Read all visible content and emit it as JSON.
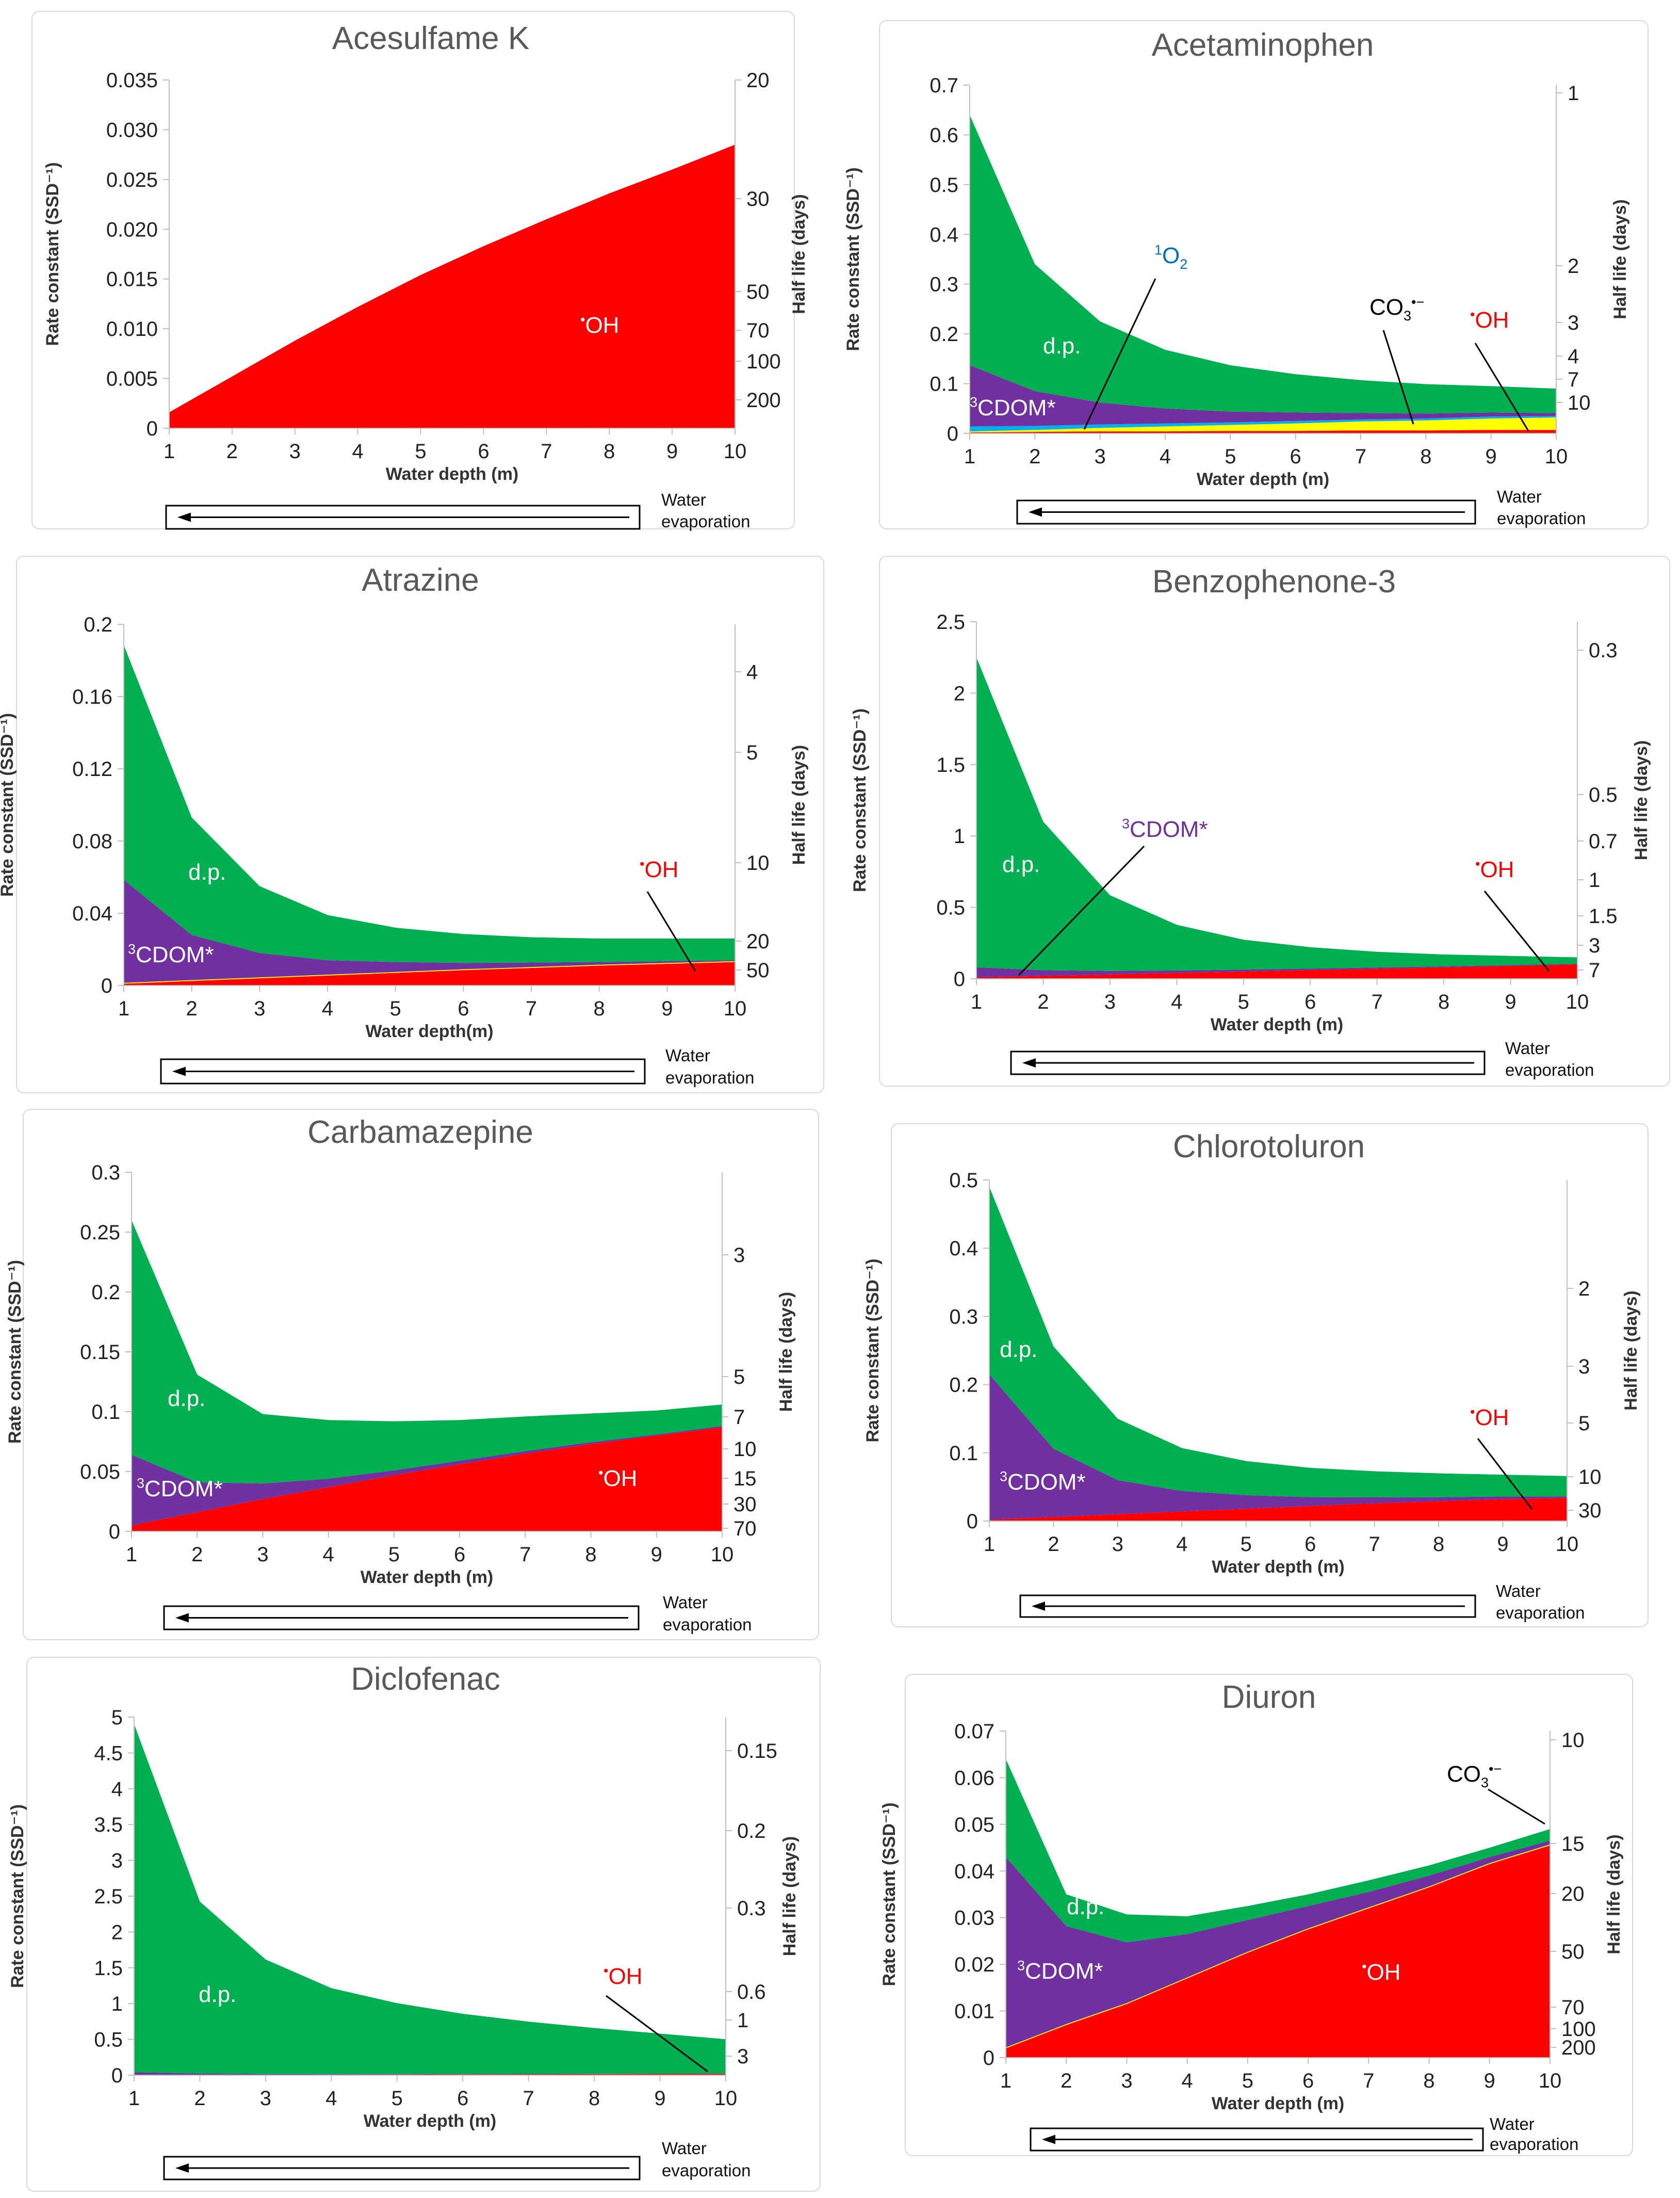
{
  "figure_title": "",
  "chart_data": [
    {
      "type": "area",
      "title": "Acesulfame K",
      "xlabel": "Water depth (m)",
      "ylabel": "Rate constant (SSD⁻¹)",
      "y2label": "Half life (days)",
      "x": [
        1,
        2,
        3,
        4,
        5,
        6,
        7,
        8,
        9,
        10
      ],
      "ylim": [
        0,
        0.035
      ],
      "yticks": [
        "0",
        "0.005",
        "0.010",
        "0.015",
        "0.020",
        "0.025",
        "0.030",
        "0.035"
      ],
      "half_life_ticks": [
        "20",
        "30",
        "50",
        "70",
        "100",
        "200"
      ],
      "series": [
        {
          "name": "•OH",
          "color": "#ff0000",
          "values": [
            0.0016,
            0.0052,
            0.0088,
            0.0122,
            0.0154,
            0.0183,
            0.021,
            0.0236,
            0.026,
            0.0285
          ]
        }
      ],
      "labels": [
        {
          "text": "•OH",
          "color": "#ffffff"
        }
      ],
      "evaporation_label": [
        "Water",
        "evaporation"
      ]
    },
    {
      "type": "area",
      "title": "Acetaminophen",
      "xlabel": "Water depth (m)",
      "ylabel": "Rate constant (SSD⁻¹)",
      "y2label": "Half life (days)",
      "x": [
        1,
        2,
        3,
        4,
        5,
        6,
        7,
        8,
        9,
        10
      ],
      "ylim": [
        0,
        0.7
      ],
      "yticks": [
        "0",
        "0.1",
        "0.2",
        "0.3",
        "0.4",
        "0.5",
        "0.6",
        "0.7"
      ],
      "half_life_ticks": [
        "1",
        "2",
        "3",
        "4",
        "7",
        "10"
      ],
      "series": [
        {
          "name": "•OH",
          "color": "#ff0000",
          "values": [
            0.002,
            0.003,
            0.004,
            0.004,
            0.005,
            0.005,
            0.006,
            0.006,
            0.007,
            0.007
          ]
        },
        {
          "name": "CO3•−",
          "color": "#ffff00",
          "values": [
            0.002,
            0.004,
            0.007,
            0.01,
            0.012,
            0.015,
            0.018,
            0.02,
            0.023,
            0.025
          ]
        },
        {
          "name": "1O2",
          "color": "#00b0f0",
          "values": [
            0.01,
            0.008,
            0.007,
            0.006,
            0.005,
            0.005,
            0.004,
            0.004,
            0.004,
            0.003
          ]
        },
        {
          "name": "3CDOM*",
          "color": "#7030a0",
          "values": [
            0.123,
            0.07,
            0.044,
            0.03,
            0.022,
            0.017,
            0.013,
            0.01,
            0.008,
            0.006
          ]
        },
        {
          "name": "d.p.",
          "color": "#00b050",
          "values": [
            0.503,
            0.255,
            0.163,
            0.118,
            0.093,
            0.077,
            0.066,
            0.059,
            0.053,
            0.049
          ]
        }
      ],
      "labels": [
        {
          "text": "d.p.",
          "color": "#ffffff"
        },
        {
          "text": "3CDOM*",
          "color": "#ffffff"
        },
        {
          "text": "1O2",
          "color": "#0070c0"
        },
        {
          "text": "CO3•−",
          "color": "#000000"
        },
        {
          "text": "•OH",
          "color": "#ff0000"
        }
      ],
      "evaporation_label": [
        "Water",
        "evaporation"
      ]
    },
    {
      "type": "area",
      "title": "Atrazine",
      "xlabel": "Water depth(m)",
      "ylabel": "Rate constant (SSD⁻¹)",
      "y2label": "Half life (days)",
      "x": [
        1,
        2,
        3,
        4,
        5,
        6,
        7,
        8,
        9,
        10
      ],
      "ylim": [
        0,
        0.2
      ],
      "yticks": [
        "0",
        "0.04",
        "0.08",
        "0.12",
        "0.16",
        "0.2"
      ],
      "half_life_ticks": [
        "4",
        "5",
        "10",
        "20",
        "50"
      ],
      "series": [
        {
          "name": "•OH",
          "color": "#ff0000",
          "values": [
            0.001,
            0.0025,
            0.004,
            0.0055,
            0.007,
            0.0085,
            0.0097,
            0.011,
            0.012,
            0.013
          ]
        },
        {
          "name": "CO3•−",
          "color": "#ffff00",
          "values": [
            0.0005,
            0.0005,
            0.0005,
            0.0005,
            0.0005,
            0.0005,
            0.0005,
            0.0005,
            0.0005,
            0.0005
          ]
        },
        {
          "name": "3CDOM*",
          "color": "#7030a0",
          "values": [
            0.057,
            0.025,
            0.0135,
            0.008,
            0.0055,
            0.0035,
            0.0025,
            0.0015,
            0.001,
            0.0005
          ]
        },
        {
          "name": "d.p.",
          "color": "#00b050",
          "values": [
            0.13,
            0.065,
            0.037,
            0.025,
            0.019,
            0.016,
            0.014,
            0.013,
            0.0125,
            0.012
          ]
        }
      ],
      "labels": [
        {
          "text": "d.p.",
          "color": "#ffffff"
        },
        {
          "text": "3CDOM*",
          "color": "#ffffff"
        },
        {
          "text": "•OH",
          "color": "#ff0000"
        }
      ],
      "evaporation_label": [
        "Water",
        "evaporation"
      ]
    },
    {
      "type": "area",
      "title": "Benzophenone-3",
      "xlabel": "Water depth (m)",
      "ylabel": "Rate constant (SSD⁻¹)",
      "y2label": "Half life (days)",
      "x": [
        1,
        2,
        3,
        4,
        5,
        6,
        7,
        8,
        9,
        10
      ],
      "ylim": [
        0,
        2.5
      ],
      "yticks": [
        "0",
        "0.5",
        "1",
        "1.5",
        "2",
        "2.5"
      ],
      "half_life_ticks": [
        "0.3",
        "0.5",
        "0.7",
        "1",
        "1.5",
        "3",
        "7"
      ],
      "series": [
        {
          "name": "•OH",
          "color": "#ff0000",
          "values": [
            0.01,
            0.02,
            0.03,
            0.04,
            0.05,
            0.06,
            0.07,
            0.08,
            0.09,
            0.1
          ]
        },
        {
          "name": "3CDOM*",
          "color": "#7030a0",
          "values": [
            0.07,
            0.04,
            0.025,
            0.018,
            0.014,
            0.011,
            0.009,
            0.007,
            0.006,
            0.005
          ]
        },
        {
          "name": "d.p.",
          "color": "#00b050",
          "values": [
            2.17,
            1.04,
            0.53,
            0.32,
            0.21,
            0.15,
            0.11,
            0.083,
            0.064,
            0.045
          ]
        }
      ],
      "labels": [
        {
          "text": "d.p.",
          "color": "#ffffff"
        },
        {
          "text": "3CDOM*",
          "color": "#7030a0"
        },
        {
          "text": "•OH",
          "color": "#ff0000"
        }
      ],
      "evaporation_label": [
        "Water",
        "evaporation"
      ]
    },
    {
      "type": "area",
      "title": "Carbamazepine",
      "xlabel": "Water depth (m)",
      "ylabel": "Rate constant (SSD⁻¹)",
      "y2label": "Half life (days)",
      "x": [
        1,
        2,
        3,
        4,
        5,
        6,
        7,
        8,
        9,
        10
      ],
      "ylim": [
        0,
        0.3
      ],
      "yticks": [
        "0",
        "0.05",
        "0.1",
        "0.15",
        "0.2",
        "0.25",
        "0.3"
      ],
      "half_life_ticks": [
        "3",
        "5",
        "7",
        "10",
        "15",
        "30",
        "70"
      ],
      "series": [
        {
          "name": "•OH",
          "color": "#ff0000",
          "values": [
            0.005,
            0.016,
            0.027,
            0.037,
            0.047,
            0.056,
            0.065,
            0.073,
            0.08,
            0.087
          ]
        },
        {
          "name": "3CDOM*",
          "color": "#7030a0",
          "values": [
            0.059,
            0.025,
            0.013,
            0.007,
            0.004,
            0.003,
            0.002,
            0.0015,
            0.001,
            0.001
          ]
        },
        {
          "name": "d.p.",
          "color": "#00b050",
          "values": [
            0.196,
            0.09,
            0.058,
            0.049,
            0.041,
            0.034,
            0.029,
            0.024,
            0.02,
            0.018
          ]
        }
      ],
      "labels": [
        {
          "text": "d.p.",
          "color": "#ffffff"
        },
        {
          "text": "3CDOM*",
          "color": "#ffffff"
        },
        {
          "text": "•OH",
          "color": "#ffffff"
        }
      ],
      "evaporation_label": [
        "Water",
        "evaporation"
      ]
    },
    {
      "type": "area",
      "title": "Chlorotoluron",
      "xlabel": "Water depth (m)",
      "ylabel": "Rate constant (SSD⁻¹)",
      "y2label": "Half life (days)",
      "x": [
        1,
        2,
        3,
        4,
        5,
        6,
        7,
        8,
        9,
        10
      ],
      "ylim": [
        0,
        0.5
      ],
      "yticks": [
        "0",
        "0.1",
        "0.2",
        "0.3",
        "0.4",
        "0.5"
      ],
      "half_life_ticks": [
        "2",
        "3",
        "5",
        "10",
        "30"
      ],
      "series": [
        {
          "name": "•OH",
          "color": "#ff0000",
          "values": [
            0.002,
            0.006,
            0.01,
            0.014,
            0.018,
            0.022,
            0.026,
            0.029,
            0.032,
            0.034
          ]
        },
        {
          "name": "3CDOM*",
          "color": "#7030a0",
          "values": [
            0.213,
            0.1,
            0.05,
            0.03,
            0.02,
            0.013,
            0.009,
            0.006,
            0.004,
            0.002
          ]
        },
        {
          "name": "d.p.",
          "color": "#00b050",
          "values": [
            0.275,
            0.15,
            0.09,
            0.063,
            0.05,
            0.043,
            0.038,
            0.035,
            0.032,
            0.03
          ]
        }
      ],
      "labels": [
        {
          "text": "d.p.",
          "color": "#ffffff"
        },
        {
          "text": "3CDOM*",
          "color": "#ffffff"
        },
        {
          "text": "•OH",
          "color": "#ff0000"
        }
      ],
      "evaporation_label": [
        "Water",
        "evaporation"
      ]
    },
    {
      "type": "area",
      "title": "Diclofenac",
      "xlabel": "Water depth (m)",
      "ylabel": "Rate constant (SSD⁻¹)",
      "y2label": "Half life (days)",
      "x": [
        1,
        2,
        3,
        4,
        5,
        6,
        7,
        8,
        9,
        10
      ],
      "ylim": [
        0,
        5
      ],
      "yticks": [
        "0",
        "0.5",
        "1",
        "1.5",
        "2",
        "2.5",
        "3",
        "3.5",
        "4",
        "4.5",
        "5"
      ],
      "half_life_ticks": [
        "0.15",
        "0.2",
        "0.3",
        "0.6",
        "1",
        "3"
      ],
      "series": [
        {
          "name": "•OH",
          "color": "#ff0000",
          "values": [
            0.002,
            0.004,
            0.006,
            0.008,
            0.01,
            0.012,
            0.014,
            0.016,
            0.018,
            0.02
          ]
        },
        {
          "name": "3CDOM*",
          "color": "#7030a0",
          "values": [
            0.04,
            0.02,
            0.01,
            0.008,
            0.006,
            0.005,
            0.004,
            0.003,
            0.003,
            0.002
          ]
        },
        {
          "name": "d.p.",
          "color": "#00b050",
          "values": [
            4.86,
            2.4,
            1.6,
            1.2,
            0.99,
            0.84,
            0.73,
            0.64,
            0.56,
            0.48
          ]
        }
      ],
      "labels": [
        {
          "text": "d.p.",
          "color": "#ffffff"
        },
        {
          "text": "•OH",
          "color": "#ff0000"
        }
      ],
      "evaporation_label": [
        "Water",
        "evaporation"
      ]
    },
    {
      "type": "area",
      "title": "Diuron",
      "xlabel": "Water depth (m)",
      "ylabel": "Rate constant (SSD⁻¹)",
      "y2label": "Half life (days)",
      "x": [
        1,
        2,
        3,
        4,
        5,
        6,
        7,
        8,
        9,
        10
      ],
      "ylim": [
        0,
        0.07
      ],
      "yticks": [
        "0",
        "0.01",
        "0.02",
        "0.03",
        "0.04",
        "0.05",
        "0.06",
        "0.07"
      ],
      "half_life_ticks": [
        "10",
        "15",
        "20",
        "50",
        "70",
        "100",
        "200"
      ],
      "series": [
        {
          "name": "•OH",
          "color": "#ff0000",
          "values": [
            0.002,
            0.007,
            0.0115,
            0.017,
            0.0225,
            0.0275,
            0.032,
            0.0365,
            0.0415,
            0.0455
          ]
        },
        {
          "name": "CO3•−",
          "color": "#ffff00",
          "values": [
            0.0002,
            0.0002,
            0.0002,
            0.0002,
            0.0002,
            0.0002,
            0.0002,
            0.0002,
            0.0002,
            0.0002
          ]
        },
        {
          "name": "3CDOM*",
          "color": "#7030a0",
          "values": [
            0.0408,
            0.021,
            0.013,
            0.0093,
            0.0068,
            0.0048,
            0.0033,
            0.0023,
            0.0013,
            0.0008
          ]
        },
        {
          "name": "d.p.",
          "color": "#00b050",
          "values": [
            0.021,
            0.0068,
            0.006,
            0.0038,
            0.003,
            0.0025,
            0.0025,
            0.0022,
            0.002,
            0.0025
          ]
        }
      ],
      "labels": [
        {
          "text": "CO3•−",
          "color": "#000000"
        },
        {
          "text": "d.p.",
          "color": "#ffffff"
        },
        {
          "text": "3CDOM*",
          "color": "#ffffff"
        },
        {
          "text": "•OH",
          "color": "#ffffff"
        }
      ],
      "evaporation_label": [
        "Water",
        "evaporation"
      ]
    }
  ]
}
